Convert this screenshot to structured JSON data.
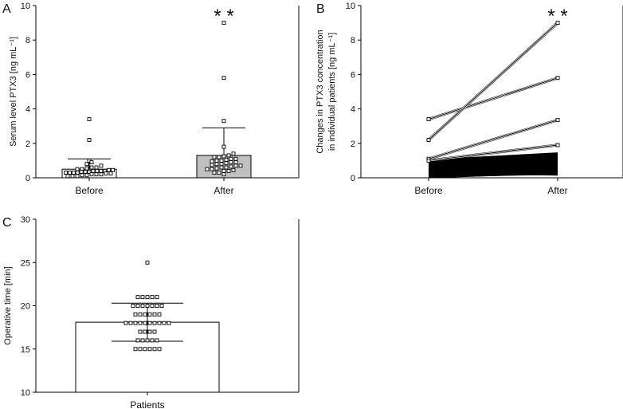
{
  "chart_data": [
    {
      "panel": "A",
      "type": "bar",
      "categories": [
        "Before",
        "After"
      ],
      "means": [
        0.5,
        1.3
      ],
      "sd_upper": [
        1.1,
        2.9
      ],
      "bar_colors": [
        "#ffffff",
        "#c0c0c0"
      ],
      "points": [
        [
          0.1,
          0.1,
          0.1,
          0.15,
          0.15,
          0.2,
          0.2,
          0.2,
          0.25,
          0.25,
          0.3,
          0.3,
          0.3,
          0.3,
          0.35,
          0.35,
          0.35,
          0.4,
          0.4,
          0.4,
          0.4,
          0.45,
          0.45,
          0.5,
          0.5,
          0.55,
          0.6,
          0.6,
          0.7,
          0.8,
          0.9,
          1.0,
          2.2,
          3.4
        ],
        [
          0.2,
          0.3,
          0.3,
          0.4,
          0.4,
          0.45,
          0.5,
          0.5,
          0.55,
          0.6,
          0.6,
          0.65,
          0.7,
          0.7,
          0.75,
          0.8,
          0.8,
          0.85,
          0.9,
          0.9,
          0.95,
          1.0,
          1.0,
          1.05,
          1.1,
          1.1,
          1.2,
          1.2,
          1.25,
          1.3,
          1.4,
          1.8,
          3.3,
          5.8,
          9.0
        ]
      ],
      "significance": [
        "",
        "* *"
      ],
      "ylabel": "Serum level PTX3 [ng mL⁻¹]",
      "yticks": [
        0,
        2,
        4,
        6,
        8,
        10
      ],
      "ylim": [
        0,
        10
      ],
      "grid": false
    },
    {
      "panel": "B",
      "type": "line",
      "categories": [
        "Before",
        "After"
      ],
      "paired_lines": [
        [
          3.4,
          5.8
        ],
        [
          2.2,
          9.0
        ],
        [
          1.1,
          3.35
        ],
        [
          1.0,
          1.9
        ],
        [
          1.0,
          1.4
        ],
        [
          0.9,
          1.3
        ],
        [
          0.85,
          1.25
        ],
        [
          0.8,
          1.2
        ],
        [
          0.75,
          1.1
        ],
        [
          0.7,
          1.05
        ],
        [
          0.65,
          1.0
        ],
        [
          0.6,
          0.95
        ],
        [
          0.55,
          0.9
        ],
        [
          0.5,
          0.85
        ],
        [
          0.45,
          0.8
        ],
        [
          0.4,
          0.75
        ],
        [
          0.35,
          0.7
        ],
        [
          0.3,
          0.65
        ],
        [
          0.25,
          0.6
        ],
        [
          0.2,
          0.55
        ],
        [
          0.15,
          0.5
        ],
        [
          0.1,
          0.45
        ],
        [
          0.1,
          0.4
        ],
        [
          0.05,
          0.35
        ],
        [
          0.05,
          0.3
        ],
        [
          0.3,
          0.2
        ],
        [
          0.1,
          0.25
        ]
      ],
      "significance": [
        "",
        "* *"
      ],
      "ylabel": "Changes in PTX3 concentration in individual patients [ng mL⁻¹]",
      "ylabel_lines": [
        "Changes in PTX3 concentration",
        "in individual patients [ng mL⁻¹]"
      ],
      "yticks": [
        0,
        2,
        4,
        6,
        8,
        10
      ],
      "ylim": [
        0,
        10
      ],
      "grid": false
    },
    {
      "panel": "C",
      "type": "bar",
      "categories": [
        "Patients"
      ],
      "means": [
        18.1
      ],
      "sd": [
        2.2
      ],
      "bar_colors": [
        "#ffffff"
      ],
      "points_by_value": {
        "15": 6,
        "16": 5,
        "17": 4,
        "18": 10,
        "19": 6,
        "20": 7,
        "21": 5,
        "25": 1
      },
      "ylabel": "Operative time [min]",
      "yticks": [
        10,
        15,
        20,
        25,
        30
      ],
      "ylim": [
        10,
        30
      ],
      "grid": false
    }
  ],
  "labels": {
    "panel_a": "A",
    "panel_b": "B",
    "panel_c": "C"
  }
}
